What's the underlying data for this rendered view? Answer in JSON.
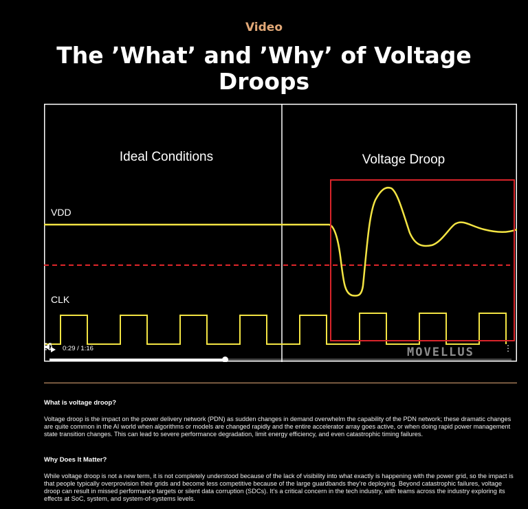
{
  "header": {
    "eyebrow": "Video",
    "title": "The ’What’ and ’Why’ of Voltage Droops"
  },
  "video": {
    "left_panel_label": "Ideal Conditions",
    "right_panel_label": "Voltage Droop",
    "vdd_label": "VDD",
    "clk_label": "CLK",
    "time_display": "0:29 / 1:16",
    "progress": 0.38,
    "logo_text": "MOVELLUS",
    "colors": {
      "signal": "#f3e443",
      "threshold": "#e0262a",
      "highlight_box": "#d8242a",
      "frame": "#ffffff"
    }
  },
  "article": {
    "q1": "What is voltage droop?",
    "a1": "Voltage droop is the impact on the power delivery network (PDN) as sudden changes in demand overwhelm the capability of the PDN network; these dramatic changes are quite common in the AI world when algorithms or models are changed rapidly and the entire accelerator array goes active, or when doing rapid power management state transition changes. This can lead to severe performance degradation, limit energy efficiency, and even catastrophic timing failures.",
    "q2": "Why Does It Matter?",
    "a2": "While voltage droop is not a new term, it is not completely understood because of the lack of visibility into what exactly is happening with the power grid, so the impact is that people typically overprovision their grids and become less competitive because of the large guardbands they’re deploying. Beyond catastrophic failures, voltage droop can result in missed performance targets or silent data corruption (SDCs). It’s a critical concern in the tech industry, with teams across the industry exploring its effects at SoC, system, and system-of-systems levels."
  }
}
